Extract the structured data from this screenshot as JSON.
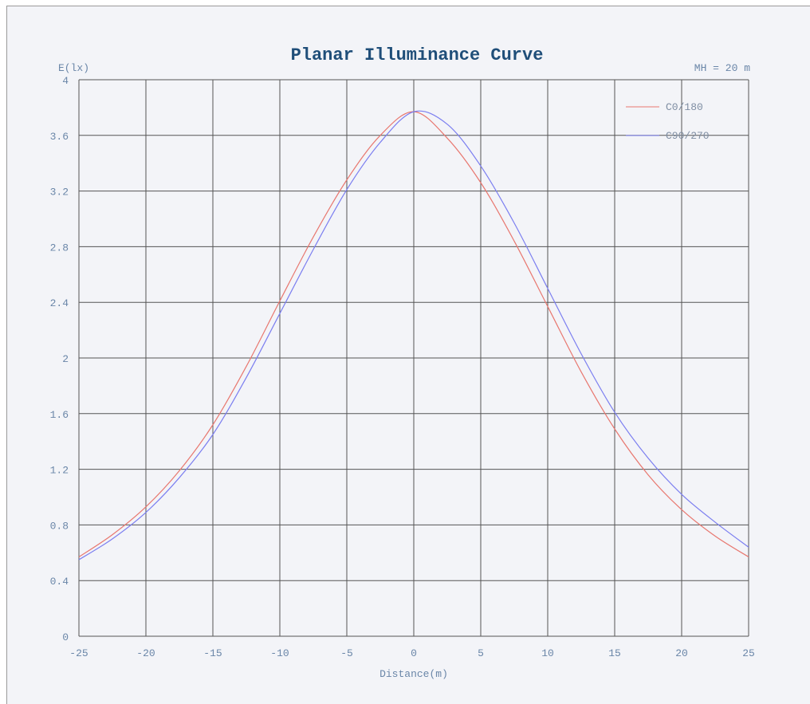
{
  "chart_data": {
    "type": "line",
    "title": "Planar Illuminance Curve",
    "ylabel": "E(lx)",
    "xlabel": "Distance(m)",
    "annotation": "MH = 20 m",
    "xlim": [
      -25,
      25
    ],
    "ylim": [
      0,
      4
    ],
    "xticks": [
      -25,
      -20,
      -15,
      -10,
      -5,
      0,
      5,
      10,
      15,
      20,
      25
    ],
    "yticks": [
      0,
      0.4,
      0.8,
      1.2,
      1.6,
      2,
      2.4,
      2.8,
      3.2,
      3.6,
      4
    ],
    "grid": true,
    "legend_position": "top-right",
    "series": [
      {
        "name": "C0/180",
        "color": "#e8776f",
        "x": [
          -25,
          -22.5,
          -20,
          -17.5,
          -15,
          -12.5,
          -10,
          -7.5,
          -5,
          -2.5,
          0,
          2.5,
          5,
          7.5,
          10,
          12.5,
          15,
          17.5,
          20,
          22.5,
          25
        ],
        "y": [
          0.57,
          0.73,
          0.93,
          1.19,
          1.52,
          1.94,
          2.41,
          2.87,
          3.28,
          3.6,
          3.77,
          3.58,
          3.26,
          2.84,
          2.37,
          1.9,
          1.49,
          1.16,
          0.91,
          0.72,
          0.57
        ]
      },
      {
        "name": "C90/270",
        "color": "#7b7ef0",
        "x": [
          -25,
          -22.5,
          -20,
          -17.5,
          -15,
          -12.5,
          -10,
          -7.5,
          -5,
          -2.5,
          0,
          2.5,
          5,
          7.5,
          10,
          12.5,
          15,
          17.5,
          20,
          22.5,
          25
        ],
        "y": [
          0.55,
          0.7,
          0.89,
          1.14,
          1.45,
          1.86,
          2.32,
          2.78,
          3.21,
          3.55,
          3.77,
          3.68,
          3.38,
          2.97,
          2.5,
          2.03,
          1.61,
          1.28,
          1.02,
          0.82,
          0.64
        ]
      }
    ]
  }
}
